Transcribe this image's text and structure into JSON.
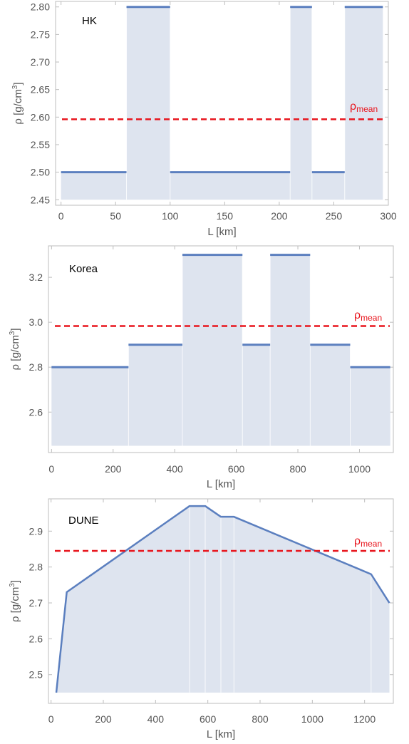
{
  "colors": {
    "line": "#5b7fbf",
    "fill": "#dee4ef",
    "mean": "#e8141c",
    "frame": "#bdbdbd",
    "text": "#555555"
  },
  "chart_data": [
    {
      "type": "area",
      "title": "HK",
      "xlabel": "L [km]",
      "ylabel": "ρ [g/cm3]",
      "mean_label": "ρmean",
      "mean_value": 2.596,
      "xlim": [
        -5,
        300
      ],
      "ylim": [
        2.44,
        2.81
      ],
      "baseline": 2.45,
      "xticks": [
        0,
        50,
        100,
        150,
        200,
        250,
        300
      ],
      "yticks": [
        2.45,
        2.5,
        2.55,
        2.6,
        2.65,
        2.7,
        2.75,
        2.8
      ],
      "ytick_labels": [
        "2.45",
        "2.50",
        "2.55",
        "2.60",
        "2.65",
        "2.70",
        "2.75",
        "2.80"
      ],
      "interpolation": "step",
      "segments": [
        {
          "x0": 0,
          "x1": 60,
          "y": 2.5
        },
        {
          "x0": 60,
          "x1": 100,
          "y": 2.8
        },
        {
          "x0": 100,
          "x1": 210,
          "y": 2.5
        },
        {
          "x0": 210,
          "x1": 230,
          "y": 2.8
        },
        {
          "x0": 230,
          "x1": 260,
          "y": 2.5
        },
        {
          "x0": 260,
          "x1": 295,
          "y": 2.8
        }
      ]
    },
    {
      "type": "area",
      "title": "Korea",
      "xlabel": "L [km]",
      "ylabel": "ρ [g/cm3]",
      "mean_label": "ρmean",
      "mean_value": 2.983,
      "xlim": [
        -10,
        1110
      ],
      "ylim": [
        2.42,
        3.34
      ],
      "baseline": 2.45,
      "xticks": [
        0,
        200,
        400,
        600,
        800,
        1000
      ],
      "yticks": [
        2.6,
        2.8,
        3.0,
        3.2
      ],
      "ytick_labels": [
        "2.6",
        "2.8",
        "3.0",
        "3.2"
      ],
      "interpolation": "step",
      "segments": [
        {
          "x0": 0,
          "x1": 250,
          "y": 2.8
        },
        {
          "x0": 250,
          "x1": 425,
          "y": 2.9
        },
        {
          "x0": 425,
          "x1": 620,
          "y": 3.3
        },
        {
          "x0": 620,
          "x1": 710,
          "y": 2.9
        },
        {
          "x0": 710,
          "x1": 840,
          "y": 3.3
        },
        {
          "x0": 840,
          "x1": 970,
          "y": 2.9
        },
        {
          "x0": 970,
          "x1": 1100,
          "y": 2.8
        }
      ]
    },
    {
      "type": "area",
      "title": "DUNE",
      "xlabel": "L [km]",
      "ylabel": "ρ [g/cm3]",
      "mean_label": "ρmean",
      "mean_value": 2.845,
      "xlim": [
        -10,
        1310
      ],
      "ylim": [
        2.42,
        2.99
      ],
      "baseline": 2.45,
      "xticks": [
        0,
        200,
        400,
        600,
        800,
        1000,
        1200
      ],
      "yticks": [
        2.5,
        2.6,
        2.7,
        2.8,
        2.9
      ],
      "ytick_labels": [
        "2.5",
        "2.6",
        "2.7",
        "2.8",
        "2.9"
      ],
      "interpolation": "linear",
      "points": [
        {
          "x": 20,
          "y": 2.45
        },
        {
          "x": 60,
          "y": 2.73
        },
        {
          "x": 530,
          "y": 2.97
        },
        {
          "x": 590,
          "y": 2.97
        },
        {
          "x": 650,
          "y": 2.94
        },
        {
          "x": 700,
          "y": 2.94
        },
        {
          "x": 1225,
          "y": 2.78
        },
        {
          "x": 1295,
          "y": 2.7
        }
      ],
      "boundaries": [
        530,
        590,
        650,
        700,
        1225
      ]
    }
  ]
}
